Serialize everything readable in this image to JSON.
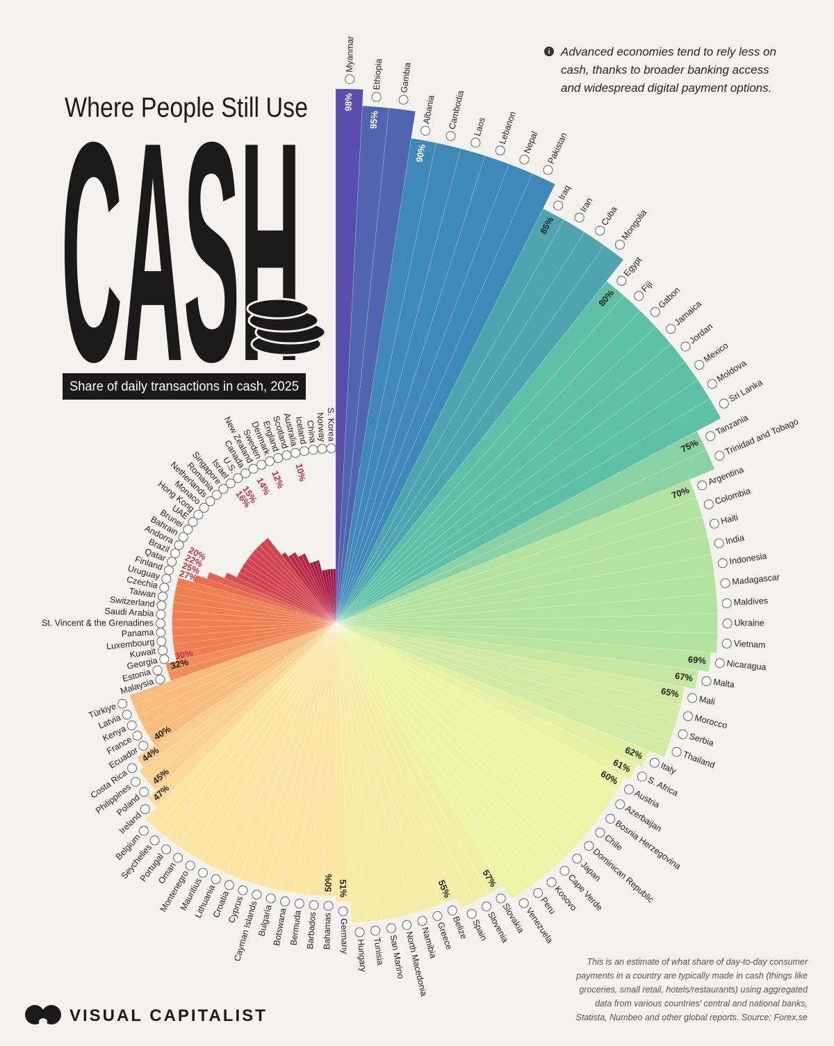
{
  "chart_data": {
    "type": "radial_bar",
    "title": "Where People Still Use",
    "headline": "CASH",
    "subtitle": "Share of daily transactions in cash, 2025",
    "note": [
      "Advanced economies tend to rely less on",
      "cash, thanks to broader banking access",
      "and widespread digital payment options."
    ],
    "footnote": [
      "This is an estimate of what share of day-to-day consumer",
      "payments in a country are typically made in cash (things like",
      "groceries, small retail, hotels/restaurants) using aggregated",
      "data from various countries' central and national banks,",
      "Statista, Numbeo and other global reports. Source: Forex.se"
    ],
    "brand": "VISUAL CAPITALIST",
    "ylim": [
      0,
      100
    ],
    "palette": [
      "#8a0a3a",
      "#a01040",
      "#d24450",
      "#f08052",
      "#fbbd7e",
      "#fce6a6",
      "#eef4a8",
      "#b4e2a0",
      "#5fc0a8",
      "#3f88b8",
      "#6040a8"
    ],
    "categories": [
      "Myanmar",
      "Ethiopia",
      "Gambia",
      "Albania",
      "Cambodia",
      "Laos",
      "Lebanon",
      "Nepal",
      "Pakistan",
      "Iraq",
      "Iran",
      "Cuba",
      "Mongolia",
      "Egypt",
      "Fiji",
      "Gabon",
      "Jamaica",
      "Jordan",
      "Mexico",
      "Moldova",
      "Sri Lanka",
      "Tanzania",
      "Trinidad and Tobago",
      "Argentina",
      "Colombia",
      "Haiti",
      "India",
      "Indonesia",
      "Madagascar",
      "Maldives",
      "Ukraine",
      "Vietnam",
      "Nicaragua",
      "Malta",
      "Mali",
      "Morocco",
      "Serbia",
      "Thailand",
      "Italy",
      "S. Africa",
      "Austria",
      "Azerbaijan",
      "Bosnia Herzegovina",
      "Chile",
      "Dominican Republic",
      "Japan",
      "Cape Verde",
      "Kosovo",
      "Peru",
      "Venezuela",
      "Slovakia",
      "Slovenia",
      "Spain",
      "Belize",
      "Greece",
      "Namibia",
      "North Macedonia",
      "San Marino",
      "Tunisia",
      "Hungary",
      "Germany",
      "Bahamas",
      "Barbados",
      "Bermuda",
      "Botswana",
      "Bulgaria",
      "Cayman Islands",
      "Cyprus",
      "Croatia",
      "Lithuania",
      "Mauritius",
      "Montenegro",
      "Oman",
      "Portugal",
      "Seychelles",
      "Belgium",
      "Ireland",
      "Poland",
      "Philippines",
      "Costa Rica",
      "Ecuador",
      "France",
      "Kenya",
      "Latvia",
      "Türkiye",
      "Malaysia",
      "Estonia",
      "Georgia",
      "Kuwait",
      "Luxembourg",
      "Panama",
      "St. Vincent & the Grenadines",
      "Saudi Arabia",
      "Switzerland",
      "Taiwan",
      "Czechia",
      "Uruguay",
      "Finland",
      "Qatar",
      "Brazil",
      "Andorra",
      "Bahrain",
      "Brunei",
      "UAE",
      "Hong Kong",
      "Monaco",
      "Netherlands",
      "Romania",
      "Singapore",
      "Israel",
      "U.S.",
      "Canada",
      "New Zealand",
      "Sweden",
      "Denmark",
      "England",
      "Scotland",
      "Australia",
      "Iceland",
      "China",
      "Norway",
      "S. Korea"
    ],
    "values": [
      98,
      95,
      95,
      90,
      90,
      90,
      90,
      90,
      90,
      85,
      85,
      85,
      85,
      80,
      80,
      80,
      80,
      80,
      80,
      80,
      80,
      75,
      75,
      70,
      70,
      70,
      70,
      70,
      70,
      70,
      70,
      70,
      69,
      67,
      65,
      65,
      65,
      65,
      62,
      61,
      60,
      60,
      60,
      60,
      60,
      60,
      60,
      60,
      60,
      60,
      57,
      57,
      57,
      55,
      55,
      55,
      55,
      55,
      55,
      55,
      51,
      50,
      50,
      50,
      50,
      50,
      50,
      50,
      50,
      50,
      50,
      50,
      50,
      50,
      50,
      50,
      47,
      45,
      45,
      44,
      40,
      40,
      40,
      40,
      40,
      32,
      32,
      30,
      30,
      30,
      30,
      30,
      30,
      30,
      30,
      30,
      30,
      27,
      25,
      22,
      20,
      20,
      20,
      20,
      20,
      20,
      20,
      20,
      20,
      16,
      15,
      15,
      14,
      14,
      12,
      12,
      12,
      10,
      10,
      10,
      10,
      10
    ],
    "value_labels": [
      "98%",
      "95%",
      null,
      "90%",
      null,
      null,
      null,
      null,
      null,
      "85%",
      null,
      null,
      null,
      "80%",
      null,
      null,
      null,
      null,
      null,
      null,
      null,
      "75%",
      null,
      "70%",
      null,
      null,
      null,
      null,
      null,
      null,
      null,
      null,
      "69%",
      "67%",
      "65%",
      null,
      null,
      null,
      "62%",
      "61%",
      "60%",
      null,
      null,
      null,
      null,
      null,
      null,
      null,
      null,
      null,
      "57%",
      null,
      null,
      "55%",
      null,
      null,
      null,
      null,
      null,
      null,
      "51%",
      "50%",
      null,
      null,
      null,
      null,
      null,
      null,
      null,
      null,
      null,
      null,
      null,
      null,
      null,
      null,
      "47%",
      "45%",
      null,
      "44%",
      "40%",
      null,
      null,
      null,
      null,
      null,
      "32%",
      "30%",
      null,
      null,
      null,
      null,
      null,
      null,
      null,
      null,
      null,
      "27%",
      "25%",
      "22%",
      "20%",
      null,
      null,
      null,
      null,
      null,
      null,
      null,
      null,
      "16%",
      "15%",
      null,
      "14%",
      null,
      "12%",
      null,
      null,
      "10%",
      null,
      null,
      null,
      null
    ]
  }
}
